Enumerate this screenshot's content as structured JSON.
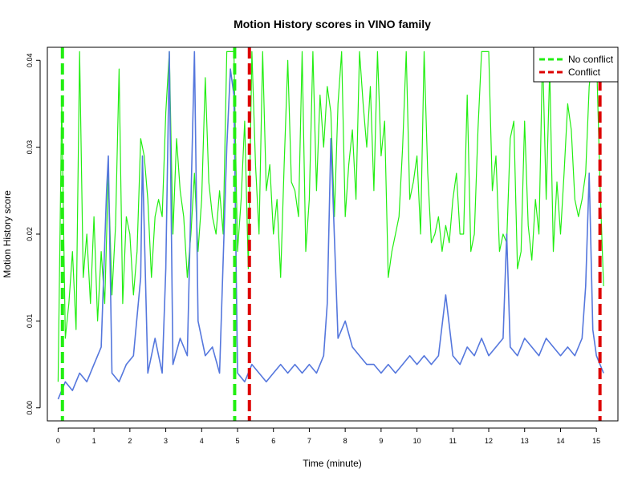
{
  "chart_data": {
    "type": "line",
    "title": "Motion History scores in VINO family",
    "xlabel": "Time (minute)",
    "ylabel": "Motion History score",
    "xlim": [
      -0.3,
      15.6
    ],
    "ylim": [
      -0.0015,
      0.0415
    ],
    "xticks": [
      0,
      1,
      2,
      3,
      4,
      5,
      6,
      7,
      8,
      9,
      10,
      11,
      12,
      13,
      14,
      15
    ],
    "yticks": [
      0.0,
      0.01,
      0.02,
      0.03,
      0.04
    ],
    "ytick_labels": [
      "0.00",
      "0.01",
      "0.02",
      "0.03",
      "0.04"
    ],
    "legend": {
      "position": "top-right",
      "items": [
        {
          "label": "No conflict",
          "color": "#22ee11",
          "style": "dashed"
        },
        {
          "label": "Conflict",
          "color": "#dd0000",
          "style": "dashed"
        }
      ]
    },
    "vlines": [
      {
        "x": 0.12,
        "color": "#22ee11",
        "style": "dashed"
      },
      {
        "x": 4.92,
        "color": "#22ee11",
        "style": "dashed"
      },
      {
        "x": 5.33,
        "color": "#dd0000",
        "style": "dashed"
      },
      {
        "x": 15.1,
        "color": "#dd0000",
        "style": "dashed"
      }
    ],
    "series": [
      {
        "color": "#22ee11",
        "points": [
          [
            0.0,
            0.003
          ],
          [
            0.1,
            0.035
          ],
          [
            0.2,
            0.008
          ],
          [
            0.3,
            0.012
          ],
          [
            0.4,
            0.018
          ],
          [
            0.5,
            0.009
          ],
          [
            0.6,
            0.041
          ],
          [
            0.7,
            0.015
          ],
          [
            0.8,
            0.02
          ],
          [
            0.9,
            0.012
          ],
          [
            1.0,
            0.022
          ],
          [
            1.1,
            0.01
          ],
          [
            1.2,
            0.018
          ],
          [
            1.3,
            0.012
          ],
          [
            1.4,
            0.027
          ],
          [
            1.5,
            0.013
          ],
          [
            1.6,
            0.021
          ],
          [
            1.7,
            0.039
          ],
          [
            1.8,
            0.012
          ],
          [
            1.9,
            0.022
          ],
          [
            2.0,
            0.02
          ],
          [
            2.1,
            0.013
          ],
          [
            2.2,
            0.018
          ],
          [
            2.3,
            0.031
          ],
          [
            2.4,
            0.029
          ],
          [
            2.5,
            0.024
          ],
          [
            2.6,
            0.015
          ],
          [
            2.7,
            0.022
          ],
          [
            2.8,
            0.024
          ],
          [
            2.9,
            0.022
          ],
          [
            3.0,
            0.034
          ],
          [
            3.1,
            0.041
          ],
          [
            3.2,
            0.02
          ],
          [
            3.3,
            0.031
          ],
          [
            3.4,
            0.025
          ],
          [
            3.5,
            0.022
          ],
          [
            3.6,
            0.015
          ],
          [
            3.7,
            0.02
          ],
          [
            3.8,
            0.027
          ],
          [
            3.9,
            0.018
          ],
          [
            4.0,
            0.024
          ],
          [
            4.1,
            0.038
          ],
          [
            4.2,
            0.026
          ],
          [
            4.3,
            0.022
          ],
          [
            4.4,
            0.02
          ],
          [
            4.5,
            0.025
          ],
          [
            4.6,
            0.02
          ],
          [
            4.7,
            0.041
          ],
          [
            4.8,
            0.041
          ],
          [
            4.9,
            0.041
          ],
          [
            5.0,
            0.018
          ],
          [
            5.1,
            0.024
          ],
          [
            5.2,
            0.033
          ],
          [
            5.3,
            0.016
          ],
          [
            5.4,
            0.041
          ],
          [
            5.5,
            0.028
          ],
          [
            5.6,
            0.02
          ],
          [
            5.7,
            0.041
          ],
          [
            5.8,
            0.025
          ],
          [
            5.9,
            0.028
          ],
          [
            6.0,
            0.02
          ],
          [
            6.1,
            0.024
          ],
          [
            6.2,
            0.015
          ],
          [
            6.3,
            0.028
          ],
          [
            6.4,
            0.04
          ],
          [
            6.5,
            0.026
          ],
          [
            6.6,
            0.025
          ],
          [
            6.7,
            0.022
          ],
          [
            6.8,
            0.041
          ],
          [
            6.9,
            0.018
          ],
          [
            7.0,
            0.024
          ],
          [
            7.1,
            0.041
          ],
          [
            7.2,
            0.025
          ],
          [
            7.3,
            0.036
          ],
          [
            7.4,
            0.03
          ],
          [
            7.5,
            0.037
          ],
          [
            7.6,
            0.034
          ],
          [
            7.7,
            0.022
          ],
          [
            7.8,
            0.035
          ],
          [
            7.9,
            0.041
          ],
          [
            8.0,
            0.022
          ],
          [
            8.1,
            0.028
          ],
          [
            8.2,
            0.032
          ],
          [
            8.3,
            0.024
          ],
          [
            8.4,
            0.041
          ],
          [
            8.5,
            0.035
          ],
          [
            8.6,
            0.03
          ],
          [
            8.7,
            0.037
          ],
          [
            8.8,
            0.025
          ],
          [
            8.9,
            0.041
          ],
          [
            9.0,
            0.029
          ],
          [
            9.1,
            0.033
          ],
          [
            9.2,
            0.015
          ],
          [
            9.3,
            0.018
          ],
          [
            9.4,
            0.02
          ],
          [
            9.5,
            0.022
          ],
          [
            9.6,
            0.03
          ],
          [
            9.7,
            0.041
          ],
          [
            9.8,
            0.024
          ],
          [
            9.9,
            0.026
          ],
          [
            10.0,
            0.029
          ],
          [
            10.1,
            0.02
          ],
          [
            10.2,
            0.041
          ],
          [
            10.3,
            0.027
          ],
          [
            10.4,
            0.019
          ],
          [
            10.5,
            0.02
          ],
          [
            10.6,
            0.022
          ],
          [
            10.7,
            0.018
          ],
          [
            10.8,
            0.021
          ],
          [
            10.9,
            0.019
          ],
          [
            11.0,
            0.024
          ],
          [
            11.1,
            0.027
          ],
          [
            11.2,
            0.02
          ],
          [
            11.3,
            0.02
          ],
          [
            11.4,
            0.036
          ],
          [
            11.5,
            0.018
          ],
          [
            11.6,
            0.02
          ],
          [
            11.7,
            0.032
          ],
          [
            11.8,
            0.041
          ],
          [
            11.9,
            0.041
          ],
          [
            12.0,
            0.041
          ],
          [
            12.1,
            0.025
          ],
          [
            12.2,
            0.029
          ],
          [
            12.3,
            0.018
          ],
          [
            12.4,
            0.02
          ],
          [
            12.5,
            0.019
          ],
          [
            12.6,
            0.031
          ],
          [
            12.7,
            0.033
          ],
          [
            12.8,
            0.016
          ],
          [
            12.9,
            0.018
          ],
          [
            13.0,
            0.033
          ],
          [
            13.1,
            0.021
          ],
          [
            13.2,
            0.017
          ],
          [
            13.3,
            0.024
          ],
          [
            13.4,
            0.02
          ],
          [
            13.5,
            0.041
          ],
          [
            13.6,
            0.024
          ],
          [
            13.7,
            0.039
          ],
          [
            13.8,
            0.018
          ],
          [
            13.9,
            0.026
          ],
          [
            14.0,
            0.02
          ],
          [
            14.1,
            0.027
          ],
          [
            14.2,
            0.035
          ],
          [
            14.3,
            0.032
          ],
          [
            14.4,
            0.024
          ],
          [
            14.5,
            0.022
          ],
          [
            14.6,
            0.024
          ],
          [
            14.7,
            0.027
          ],
          [
            14.8,
            0.037
          ],
          [
            14.9,
            0.041
          ],
          [
            15.0,
            0.041
          ],
          [
            15.1,
            0.026
          ],
          [
            15.2,
            0.014
          ]
        ]
      },
      {
        "color": "#5577dd",
        "points": [
          [
            0.0,
            0.001
          ],
          [
            0.2,
            0.003
          ],
          [
            0.4,
            0.002
          ],
          [
            0.6,
            0.004
          ],
          [
            0.8,
            0.003
          ],
          [
            1.0,
            0.005
          ],
          [
            1.2,
            0.007
          ],
          [
            1.35,
            0.025
          ],
          [
            1.4,
            0.029
          ],
          [
            1.5,
            0.004
          ],
          [
            1.7,
            0.003
          ],
          [
            1.9,
            0.005
          ],
          [
            2.1,
            0.006
          ],
          [
            2.3,
            0.015
          ],
          [
            2.35,
            0.029
          ],
          [
            2.5,
            0.004
          ],
          [
            2.7,
            0.008
          ],
          [
            2.9,
            0.004
          ],
          [
            3.0,
            0.016
          ],
          [
            3.1,
            0.041
          ],
          [
            3.2,
            0.005
          ],
          [
            3.4,
            0.008
          ],
          [
            3.6,
            0.006
          ],
          [
            3.8,
            0.041
          ],
          [
            3.9,
            0.01
          ],
          [
            4.1,
            0.006
          ],
          [
            4.3,
            0.007
          ],
          [
            4.5,
            0.004
          ],
          [
            4.7,
            0.03
          ],
          [
            4.8,
            0.039
          ],
          [
            4.9,
            0.036
          ],
          [
            5.0,
            0.004
          ],
          [
            5.2,
            0.003
          ],
          [
            5.4,
            0.005
          ],
          [
            5.6,
            0.004
          ],
          [
            5.8,
            0.003
          ],
          [
            6.0,
            0.004
          ],
          [
            6.2,
            0.005
          ],
          [
            6.4,
            0.004
          ],
          [
            6.6,
            0.005
          ],
          [
            6.8,
            0.004
          ],
          [
            7.0,
            0.005
          ],
          [
            7.2,
            0.004
          ],
          [
            7.4,
            0.006
          ],
          [
            7.5,
            0.012
          ],
          [
            7.6,
            0.031
          ],
          [
            7.8,
            0.008
          ],
          [
            8.0,
            0.01
          ],
          [
            8.2,
            0.007
          ],
          [
            8.4,
            0.006
          ],
          [
            8.6,
            0.005
          ],
          [
            8.8,
            0.005
          ],
          [
            9.0,
            0.004
          ],
          [
            9.2,
            0.005
          ],
          [
            9.4,
            0.004
          ],
          [
            9.6,
            0.005
          ],
          [
            9.8,
            0.006
          ],
          [
            10.0,
            0.005
          ],
          [
            10.2,
            0.006
          ],
          [
            10.4,
            0.005
          ],
          [
            10.6,
            0.006
          ],
          [
            10.8,
            0.013
          ],
          [
            11.0,
            0.006
          ],
          [
            11.2,
            0.005
          ],
          [
            11.4,
            0.007
          ],
          [
            11.6,
            0.006
          ],
          [
            11.8,
            0.008
          ],
          [
            12.0,
            0.006
          ],
          [
            12.2,
            0.007
          ],
          [
            12.4,
            0.008
          ],
          [
            12.5,
            0.02
          ],
          [
            12.6,
            0.007
          ],
          [
            12.8,
            0.006
          ],
          [
            13.0,
            0.008
          ],
          [
            13.2,
            0.007
          ],
          [
            13.4,
            0.006
          ],
          [
            13.6,
            0.008
          ],
          [
            13.8,
            0.007
          ],
          [
            14.0,
            0.006
          ],
          [
            14.2,
            0.007
          ],
          [
            14.4,
            0.006
          ],
          [
            14.6,
            0.008
          ],
          [
            14.7,
            0.014
          ],
          [
            14.8,
            0.027
          ],
          [
            14.9,
            0.009
          ],
          [
            15.0,
            0.006
          ],
          [
            15.2,
            0.004
          ]
        ]
      }
    ]
  }
}
